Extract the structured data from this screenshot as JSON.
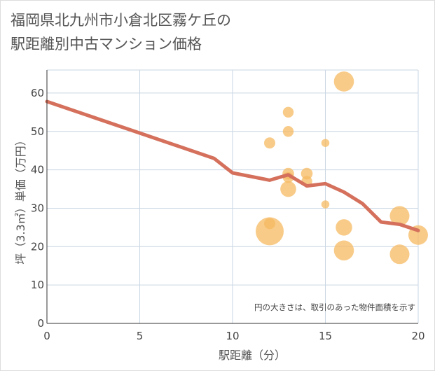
{
  "chart_data": {
    "type": "scatter",
    "title": "福岡県北九州市小倉北区霧ケ丘の\n駅距離別中古マンション価格",
    "xlabel": "駅距離（分）",
    "ylabel": "坪（3.3㎡）単価（万円）",
    "xlim": [
      0,
      20
    ],
    "ylim": [
      0,
      66
    ],
    "xticks": [
      "0",
      "5",
      "10",
      "15",
      "20"
    ],
    "yticks": [
      "0",
      "10",
      "20",
      "30",
      "40",
      "50",
      "60"
    ],
    "grid": true,
    "note": "円の大きさは、取引のあった物件面積を示す",
    "colors": {
      "bubble": "#f5b962",
      "line": "#d4705c",
      "grid": "#c9d6e3",
      "axis": "#333333"
    },
    "points": [
      {
        "x": 12,
        "y": 47,
        "size": 0.2
      },
      {
        "x": 12,
        "y": 26,
        "size": 0.2
      },
      {
        "x": 12,
        "y": 24,
        "size": 1.0
      },
      {
        "x": 13,
        "y": 55,
        "size": 0.18
      },
      {
        "x": 13,
        "y": 50,
        "size": 0.18
      },
      {
        "x": 13,
        "y": 39,
        "size": 0.22
      },
      {
        "x": 13,
        "y": 38,
        "size": 0.18
      },
      {
        "x": 13,
        "y": 35,
        "size": 0.42
      },
      {
        "x": 14,
        "y": 39,
        "size": 0.22
      },
      {
        "x": 14,
        "y": 37,
        "size": 0.18
      },
      {
        "x": 15,
        "y": 47,
        "size": 0.05
      },
      {
        "x": 15,
        "y": 31,
        "size": 0.05
      },
      {
        "x": 16,
        "y": 63,
        "size": 0.62
      },
      {
        "x": 16,
        "y": 25,
        "size": 0.45
      },
      {
        "x": 16,
        "y": 19,
        "size": 0.62
      },
      {
        "x": 19,
        "y": 28,
        "size": 0.6
      },
      {
        "x": 19,
        "y": 18,
        "size": 0.6
      },
      {
        "x": 20,
        "y": 23,
        "size": 0.6
      }
    ],
    "line": {
      "x": [
        0,
        9,
        10,
        12,
        13,
        14,
        15,
        16,
        17,
        18,
        19,
        20
      ],
      "y": [
        57.8,
        43,
        39.2,
        37.3,
        38.7,
        35.8,
        36.4,
        34.2,
        31.2,
        26.4,
        25.8,
        24.2
      ]
    }
  }
}
